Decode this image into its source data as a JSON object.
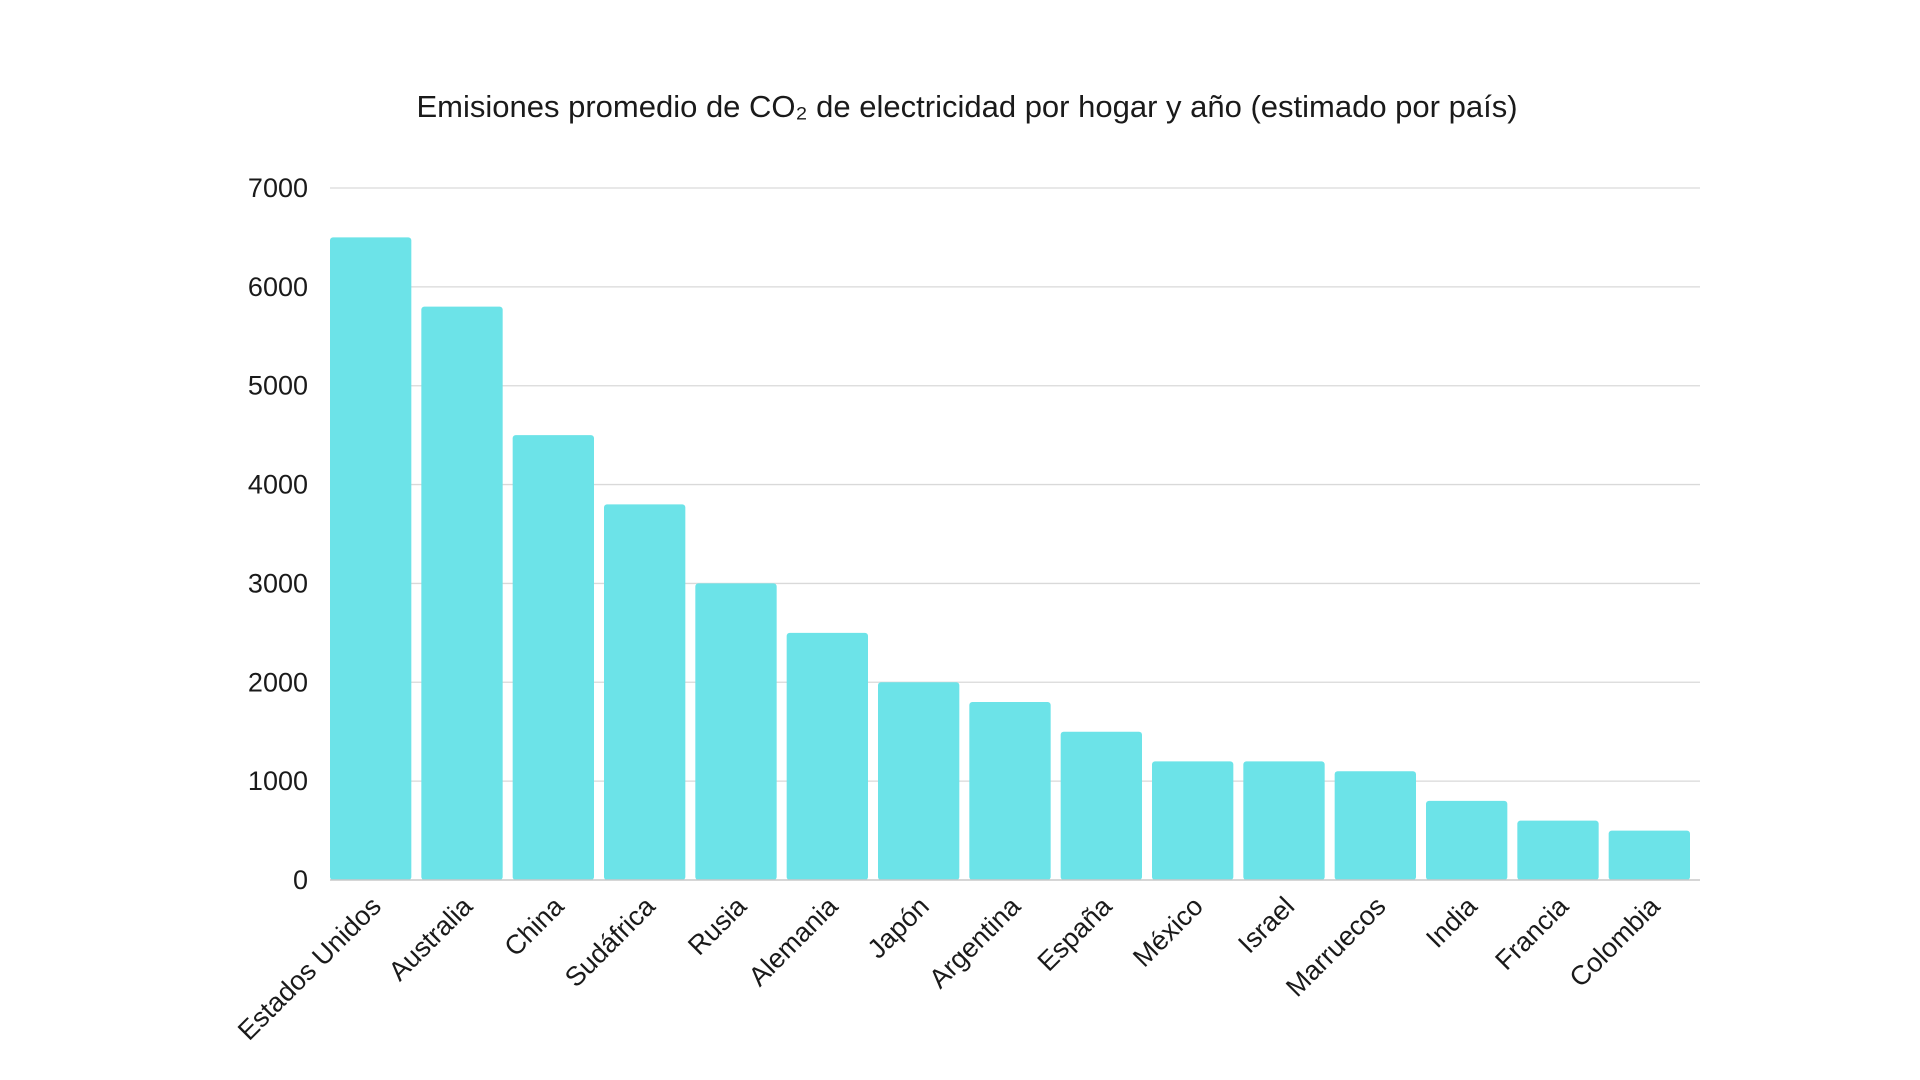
{
  "chart_data": {
    "type": "bar",
    "title": "Emisiones promedio de CO₂ de electricidad por hogar y año (estimado por país)",
    "xlabel": "",
    "ylabel": "",
    "categories": [
      "Estados Unidos",
      "Australia",
      "China",
      "Sudáfrica",
      "Rusia",
      "Alemania",
      "Japón",
      "Argentina",
      "España",
      "México",
      "Israel",
      "Marruecos",
      "India",
      "Francia",
      "Colombia"
    ],
    "values": [
      6500,
      5800,
      4500,
      3800,
      3000,
      2500,
      2000,
      1800,
      1500,
      1200,
      1200,
      1100,
      800,
      600,
      500
    ],
    "ylim": [
      0,
      7000
    ],
    "yticks": [
      0,
      1000,
      2000,
      3000,
      4000,
      5000,
      6000,
      7000
    ],
    "ytick_labels": [
      "0",
      "1000",
      "2000",
      "3000",
      "4000",
      "5000",
      "6000",
      "7000"
    ],
    "grid": true,
    "legend": "none",
    "bar_color": "#6ce3e8"
  }
}
